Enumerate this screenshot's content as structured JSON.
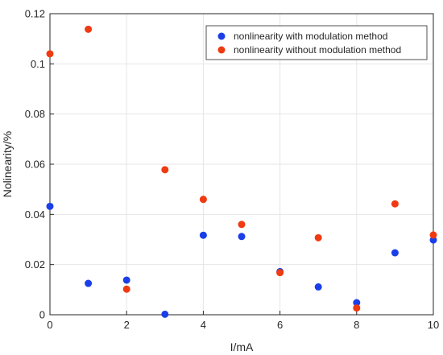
{
  "chart_data": {
    "type": "scatter",
    "title": "",
    "xlabel": "I/mA",
    "ylabel": "Nolinearity/%",
    "xlim": [
      0,
      10
    ],
    "ylim": [
      0,
      0.12
    ],
    "xticks": [
      "0",
      "2",
      "4",
      "6",
      "8",
      "10"
    ],
    "yticks": [
      "0",
      "0.02",
      "0.04",
      "0.06",
      "0.08",
      "0.1",
      "0.12"
    ],
    "grid": true,
    "legend_position": "top-right",
    "series": [
      {
        "name": "nonlinearity with modulation method",
        "color": "#1a3fe8",
        "x": [
          0,
          1,
          2,
          3,
          4,
          5,
          6,
          7,
          8,
          9,
          10
        ],
        "y": [
          0.0432,
          0.0125,
          0.0138,
          0.0002,
          0.0317,
          0.0312,
          0.0172,
          0.0111,
          0.0048,
          0.0247,
          0.0298
        ]
      },
      {
        "name": "nonlinearity without modulation method",
        "color": "#ef3a12",
        "x": [
          0,
          1,
          2,
          3,
          4,
          5,
          6,
          7,
          8,
          9,
          10
        ],
        "y": [
          0.104,
          0.1138,
          0.0102,
          0.0578,
          0.046,
          0.036,
          0.0168,
          0.0307,
          0.0027,
          0.0442,
          0.0318
        ]
      }
    ]
  }
}
